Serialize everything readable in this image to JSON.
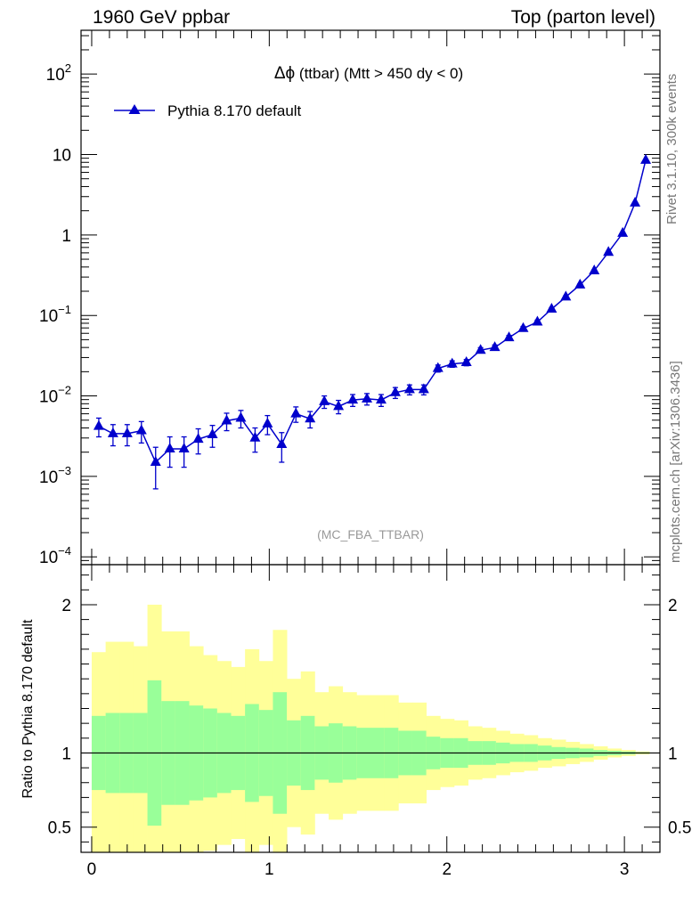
{
  "header": {
    "left": "1960 GeV ppbar",
    "right": "Top (parton level)"
  },
  "side_labels": {
    "rivet": "Rivet 3.1.10,  300k events",
    "source": "mcplots.cern.ch [arXiv:1306.3436]"
  },
  "watermark": "(MC_FBA_TTBAR)",
  "colors": {
    "mc_line": "#0000cc",
    "band_inner": "#99ff99",
    "band_outer": "#ffff99"
  },
  "chart_data": [
    {
      "type": "line",
      "title": "Δϕ (ttbar) (Mtt > 450 dy < 0)",
      "title_parts": {
        "symbol": "Δϕ",
        "rest": " (ttbar) (Mtt > 450 dy < 0)"
      },
      "xlabel": "",
      "ylabel": "",
      "yscale": "log",
      "xlim": [
        -0.06,
        3.2
      ],
      "ylim": [
        8e-05,
        350
      ],
      "yticks": [
        {
          "base": "10",
          "exp": "−4",
          "value": 0.0001
        },
        {
          "base": "10",
          "exp": "−3",
          "value": 0.001
        },
        {
          "base": "10",
          "exp": "−2",
          "value": 0.01
        },
        {
          "base": "10",
          "exp": "−1",
          "value": 0.1
        },
        {
          "base": "1",
          "exp": "",
          "value": 1
        },
        {
          "base": "10",
          "exp": "",
          "value": 10
        },
        {
          "base": "10",
          "exp": "2",
          "value": 100
        }
      ],
      "legend_position": "top-left",
      "series": [
        {
          "name": "Pythia 8.170 default",
          "marker": "triangle-up",
          "x": [
            0.04,
            0.12,
            0.2,
            0.28,
            0.36,
            0.44,
            0.52,
            0.6,
            0.68,
            0.76,
            0.84,
            0.92,
            0.99,
            1.07,
            1.15,
            1.23,
            1.31,
            1.39,
            1.47,
            1.55,
            1.63,
            1.71,
            1.79,
            1.87,
            1.95,
            2.03,
            2.11,
            2.19,
            2.27,
            2.35,
            2.43,
            2.51,
            2.59,
            2.67,
            2.75,
            2.83,
            2.91,
            2.99,
            3.06,
            3.12
          ],
          "y": [
            0.0042,
            0.0034,
            0.0034,
            0.0037,
            0.0015,
            0.0022,
            0.0022,
            0.0029,
            0.0033,
            0.0049,
            0.0053,
            0.003,
            0.0045,
            0.0025,
            0.006,
            0.0052,
            0.0085,
            0.0074,
            0.0089,
            0.0092,
            0.0089,
            0.011,
            0.012,
            0.012,
            0.022,
            0.025,
            0.026,
            0.037,
            0.04,
            0.053,
            0.069,
            0.083,
            0.12,
            0.17,
            0.24,
            0.36,
            0.61,
            1.05,
            2.5,
            8.5
          ],
          "yerr_low": [
            0.0011,
            0.001,
            0.001,
            0.0011,
            0.0008,
            0.0009,
            0.0009,
            0.001,
            0.001,
            0.0012,
            0.0013,
            0.001,
            0.0012,
            0.001,
            0.0013,
            0.0012,
            0.0015,
            0.0014,
            0.0015,
            0.0015,
            0.0015,
            0.0017,
            0.0017,
            0.0017,
            0.0022,
            0.0023,
            0.0023,
            0.0028,
            0.003,
            0.0034,
            0.004,
            0.0045,
            0.005,
            0.006,
            0.007,
            0.009,
            0.012,
            0.018,
            0.03,
            0.06
          ],
          "yerr_high": [
            0.0011,
            0.001,
            0.001,
            0.0011,
            0.0008,
            0.0009,
            0.0009,
            0.001,
            0.001,
            0.0012,
            0.0013,
            0.001,
            0.0012,
            0.001,
            0.0013,
            0.0012,
            0.0015,
            0.0014,
            0.0015,
            0.0015,
            0.0015,
            0.0017,
            0.0017,
            0.0017,
            0.0022,
            0.0023,
            0.0023,
            0.0028,
            0.003,
            0.0034,
            0.004,
            0.0045,
            0.005,
            0.006,
            0.007,
            0.009,
            0.012,
            0.018,
            0.03,
            0.06
          ]
        }
      ]
    },
    {
      "type": "area",
      "ylabel": "Ratio to Pythia 8.170 default",
      "xlim": [
        -0.06,
        3.2
      ],
      "ylim": [
        0.33,
        2.27
      ],
      "xticks": [
        "0",
        "1",
        "2",
        "3"
      ],
      "yticks": [
        "0.5",
        "1",
        "2"
      ],
      "reference_line": 1,
      "bin_edges": [
        0.0,
        0.0785,
        0.157,
        0.2355,
        0.314,
        0.3925,
        0.471,
        0.5495,
        0.628,
        0.7065,
        0.785,
        0.8635,
        0.942,
        1.0205,
        1.099,
        1.1775,
        1.256,
        1.3345,
        1.413,
        1.4915,
        1.57,
        1.6485,
        1.727,
        1.8055,
        1.884,
        1.9625,
        2.041,
        2.1195,
        2.198,
        2.2765,
        2.355,
        2.4335,
        2.512,
        2.5905,
        2.669,
        2.7475,
        2.826,
        2.9045,
        2.983,
        3.0615,
        3.14
      ],
      "bands": {
        "inner_half_width": [
          0.25,
          0.27,
          0.27,
          0.27,
          0.49,
          0.35,
          0.35,
          0.32,
          0.3,
          0.27,
          0.25,
          0.33,
          0.29,
          0.41,
          0.22,
          0.25,
          0.18,
          0.2,
          0.18,
          0.17,
          0.17,
          0.17,
          0.15,
          0.15,
          0.11,
          0.1,
          0.1,
          0.08,
          0.08,
          0.07,
          0.06,
          0.06,
          0.05,
          0.04,
          0.035,
          0.03,
          0.02,
          0.015,
          0.01,
          0.005
        ],
        "outer_half_width": [
          0.68,
          0.75,
          0.75,
          0.72,
          1.0,
          0.82,
          0.82,
          0.72,
          0.66,
          0.62,
          0.58,
          0.7,
          0.62,
          0.83,
          0.5,
          0.55,
          0.41,
          0.45,
          0.41,
          0.39,
          0.39,
          0.39,
          0.34,
          0.34,
          0.25,
          0.23,
          0.22,
          0.18,
          0.17,
          0.15,
          0.13,
          0.12,
          0.1,
          0.09,
          0.075,
          0.06,
          0.045,
          0.03,
          0.02,
          0.01
        ]
      }
    }
  ]
}
